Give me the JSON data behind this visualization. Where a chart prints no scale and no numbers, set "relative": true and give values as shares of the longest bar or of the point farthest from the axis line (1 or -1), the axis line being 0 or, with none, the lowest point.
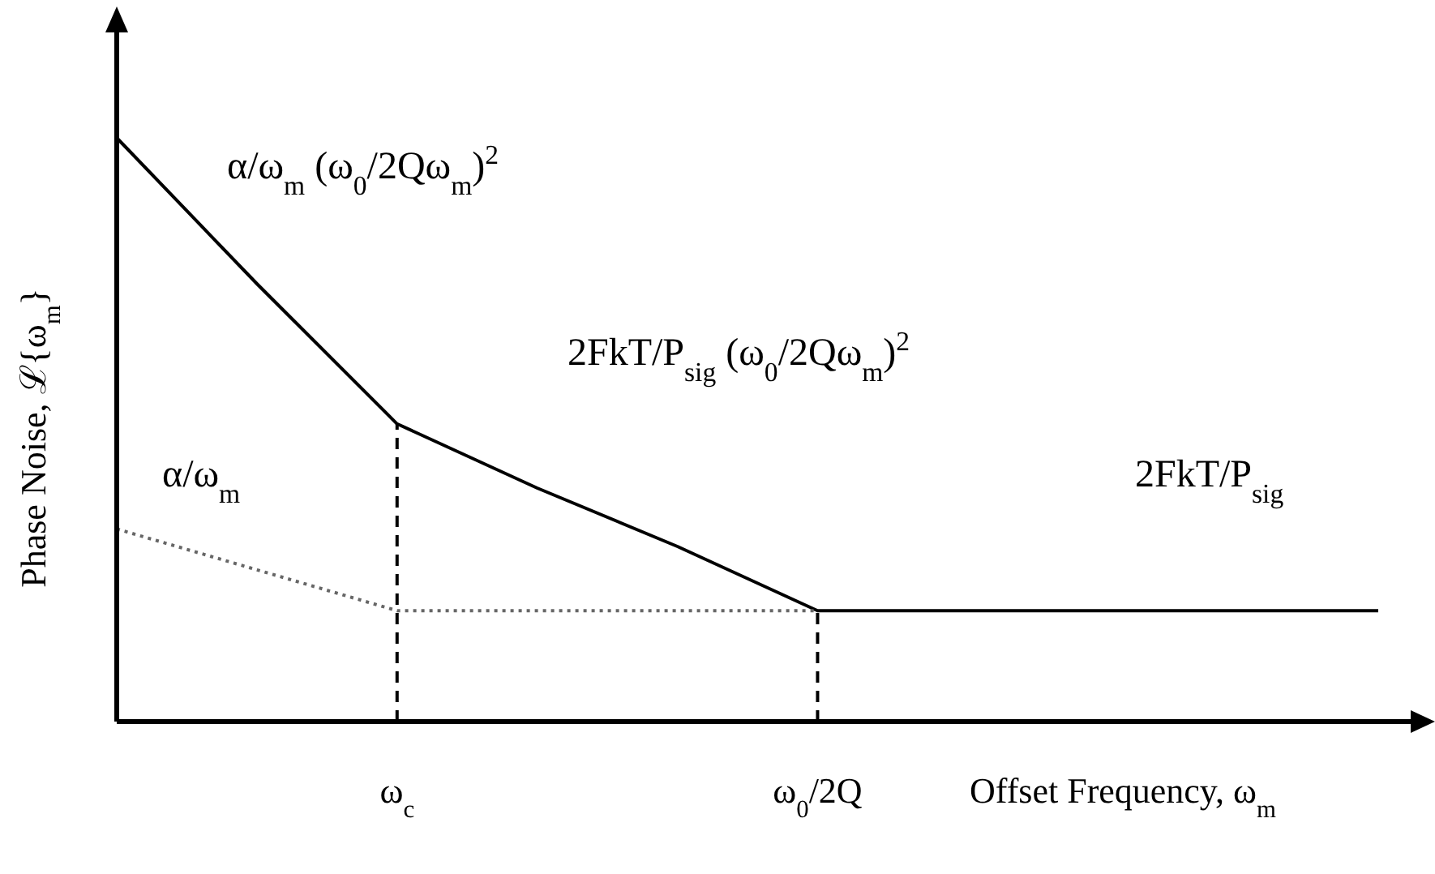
{
  "chart_data": {
    "type": "line",
    "relative": true,
    "xlabel": "Offset Frequency, ω$_{m}$",
    "ylabel": "Phase Noise, ℒ{ω$_{m}$}",
    "categories": [
      null,
      null,
      "ω$_{c}$",
      null,
      null,
      "ω$_{0}$/2Q",
      null,
      null,
      null,
      null
    ],
    "series": [
      {
        "color": "#000000",
        "line_style": "solid",
        "values": [
          1,
          0.75,
          0.51,
          0.4,
          0.3,
          0.19,
          0.19,
          0.19,
          0.19,
          0.19
        ]
      },
      {
        "color": "#666666",
        "line_style": "dotted",
        "values": [
          0.33,
          0.26,
          0.19,
          0.19,
          0.19,
          0.19,
          null,
          null,
          null,
          null
        ]
      }
    ],
    "ref_lines": [
      {
        "axis": "x",
        "value": "ω$_{c}$",
        "line_style": "dashed",
        "color": "#000000"
      },
      {
        "axis": "x",
        "value": "ω$_{0}$/2Q",
        "line_style": "dashed",
        "color": "#000000"
      }
    ],
    "annotations": [
      "α/ω$_{m}$ (ω$_{0}$/2Qω$_{m}$)$^{2}$",
      "2FkT/P$_{sig}$ (ω$_{0}$/2Qω$_{m}$)$^{2}$",
      "α/ω$_{m}$",
      "2FkT/P$_{sig}$"
    ]
  }
}
